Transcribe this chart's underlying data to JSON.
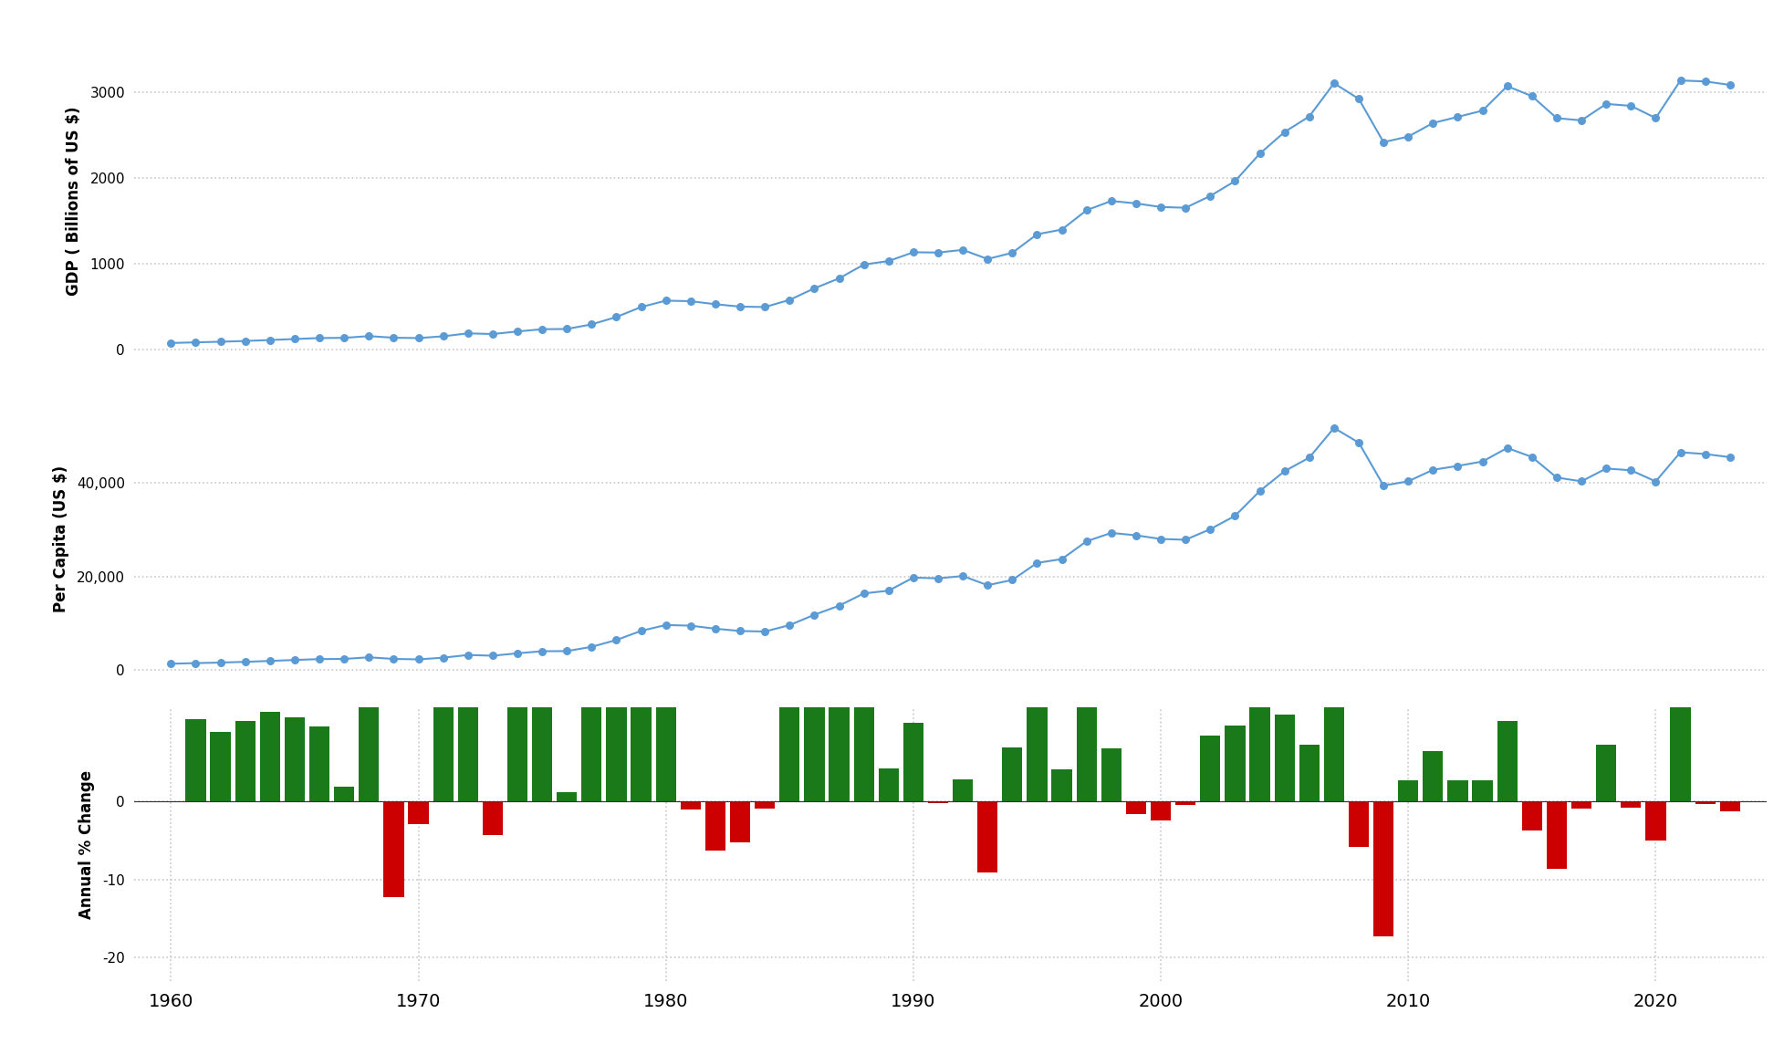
{
  "years": [
    1960,
    1961,
    1962,
    1963,
    1964,
    1965,
    1966,
    1967,
    1968,
    1969,
    1970,
    1971,
    1972,
    1973,
    1974,
    1975,
    1976,
    1977,
    1978,
    1979,
    1980,
    1981,
    1982,
    1983,
    1984,
    1985,
    1986,
    1987,
    1988,
    1989,
    1990,
    1991,
    1992,
    1993,
    1994,
    1995,
    1996,
    1997,
    1998,
    1999,
    2000,
    2001,
    2002,
    2003,
    2004,
    2005,
    2006,
    2007,
    2008,
    2009,
    2010,
    2011,
    2012,
    2013,
    2014,
    2015,
    2016,
    2017,
    2018,
    2019,
    2020,
    2021,
    2022,
    2023
  ],
  "gdp": [
    73.23,
    80.87,
    88.02,
    97.03,
    108.12,
    119.69,
    131.1,
    133.45,
    153.65,
    134.77,
    130.82,
    151.46,
    185.78,
    177.73,
    207.64,
    233.85,
    236.46,
    290.57,
    376.09,
    492.37,
    566.73,
    560.38,
    524.83,
    497.17,
    492.43,
    575.59,
    709.83,
    826.21,
    987.14,
    1027.89,
    1130.3,
    1127.05,
    1157.9,
    1052.0,
    1124.05,
    1339.8,
    1394.56,
    1619.61,
    1728.19,
    1699.27,
    1657.06,
    1648.77,
    1786.38,
    1959.45,
    2278.56,
    2530.9,
    2712.31,
    3099.0,
    2917.09,
    2412.68,
    2477.97,
    2635.76,
    2707.28,
    2779.64,
    3065.63,
    2949.02,
    2692.38,
    2666.45,
    2858.35,
    2835.38,
    2693.57,
    3131.38,
    3120.23,
    3079.89
  ],
  "gdp_per_capita": [
    1390,
    1521,
    1641,
    1797,
    1990,
    2191,
    2384,
    2412,
    2762,
    2413,
    2325,
    2673,
    3261,
    3101,
    3614,
    4059,
    4087,
    5003,
    6447,
    8410,
    9652,
    9504,
    8865,
    8376,
    8260,
    9627,
    11844,
    13764,
    16394,
    16978,
    19770,
    19610,
    20104,
    18143,
    19269,
    22899,
    23718,
    27517,
    29301,
    28784,
    28009,
    27836,
    30105,
    32941,
    38234,
    42469,
    45363,
    51698,
    48567,
    39390,
    40317,
    42765,
    43597,
    44535,
    47426,
    45492,
    41113,
    40306,
    43045,
    42661,
    40285,
    46510,
    46125,
    45461
  ],
  "line_color": "#5b9bd5",
  "bar_color_pos": "#1a7a1a",
  "bar_color_neg": "#cc0000",
  "bg_color": "#ffffff",
  "grid_color": "#c8c8c8",
  "ylabel1": "GDP ( Billions of US $)",
  "ylabel2": "Per Capita (US $)",
  "ylabel3": "Annual % Change",
  "yticks1": [
    0,
    1000,
    2000,
    3000
  ],
  "yticks2": [
    0,
    20000,
    40000
  ],
  "yticks3": [
    -20,
    -10,
    0
  ],
  "ylim1": [
    -250,
    3700
  ],
  "ylim2": [
    -4000,
    60000
  ],
  "ylim3": [
    -23,
    12
  ],
  "xlim": [
    1958.5,
    2024.5
  ],
  "xtick_years": [
    1960,
    1970,
    1980,
    1990,
    2000,
    2010,
    2020
  ]
}
